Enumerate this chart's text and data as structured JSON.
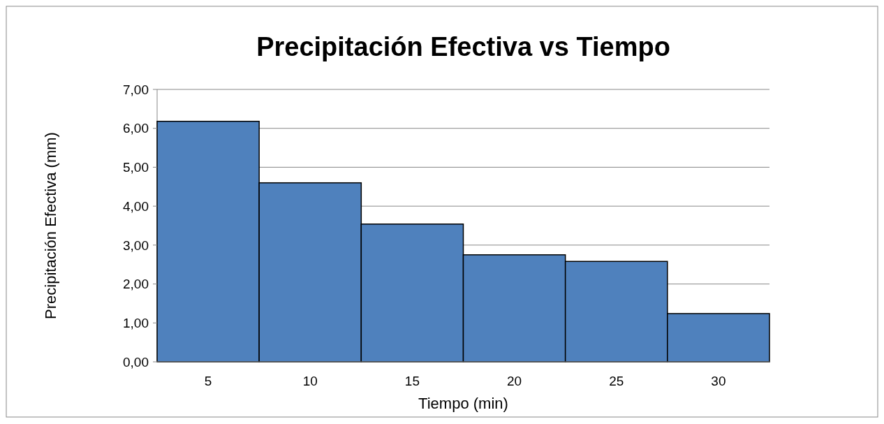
{
  "chart_data": {
    "type": "bar",
    "title": "Precipitación Efectiva vs Tiempo",
    "xlabel": "Tiempo (min)",
    "ylabel": "Precipitación Efectiva (mm)",
    "categories": [
      "5",
      "10",
      "15",
      "20",
      "25",
      "30"
    ],
    "values": [
      6.18,
      4.6,
      3.54,
      2.75,
      2.58,
      1.24
    ],
    "color": "#4f81bd",
    "ylim": [
      0,
      7
    ],
    "yticks": [
      {
        "value": 0,
        "label": "0,00"
      },
      {
        "value": 1,
        "label": "1,00"
      },
      {
        "value": 2,
        "label": "2,00"
      },
      {
        "value": 3,
        "label": "3,00"
      },
      {
        "value": 4,
        "label": "4,00"
      },
      {
        "value": 5,
        "label": "5,00"
      },
      {
        "value": 6,
        "label": "6,00"
      },
      {
        "value": 7,
        "label": "7,00"
      }
    ],
    "grid": "y"
  }
}
